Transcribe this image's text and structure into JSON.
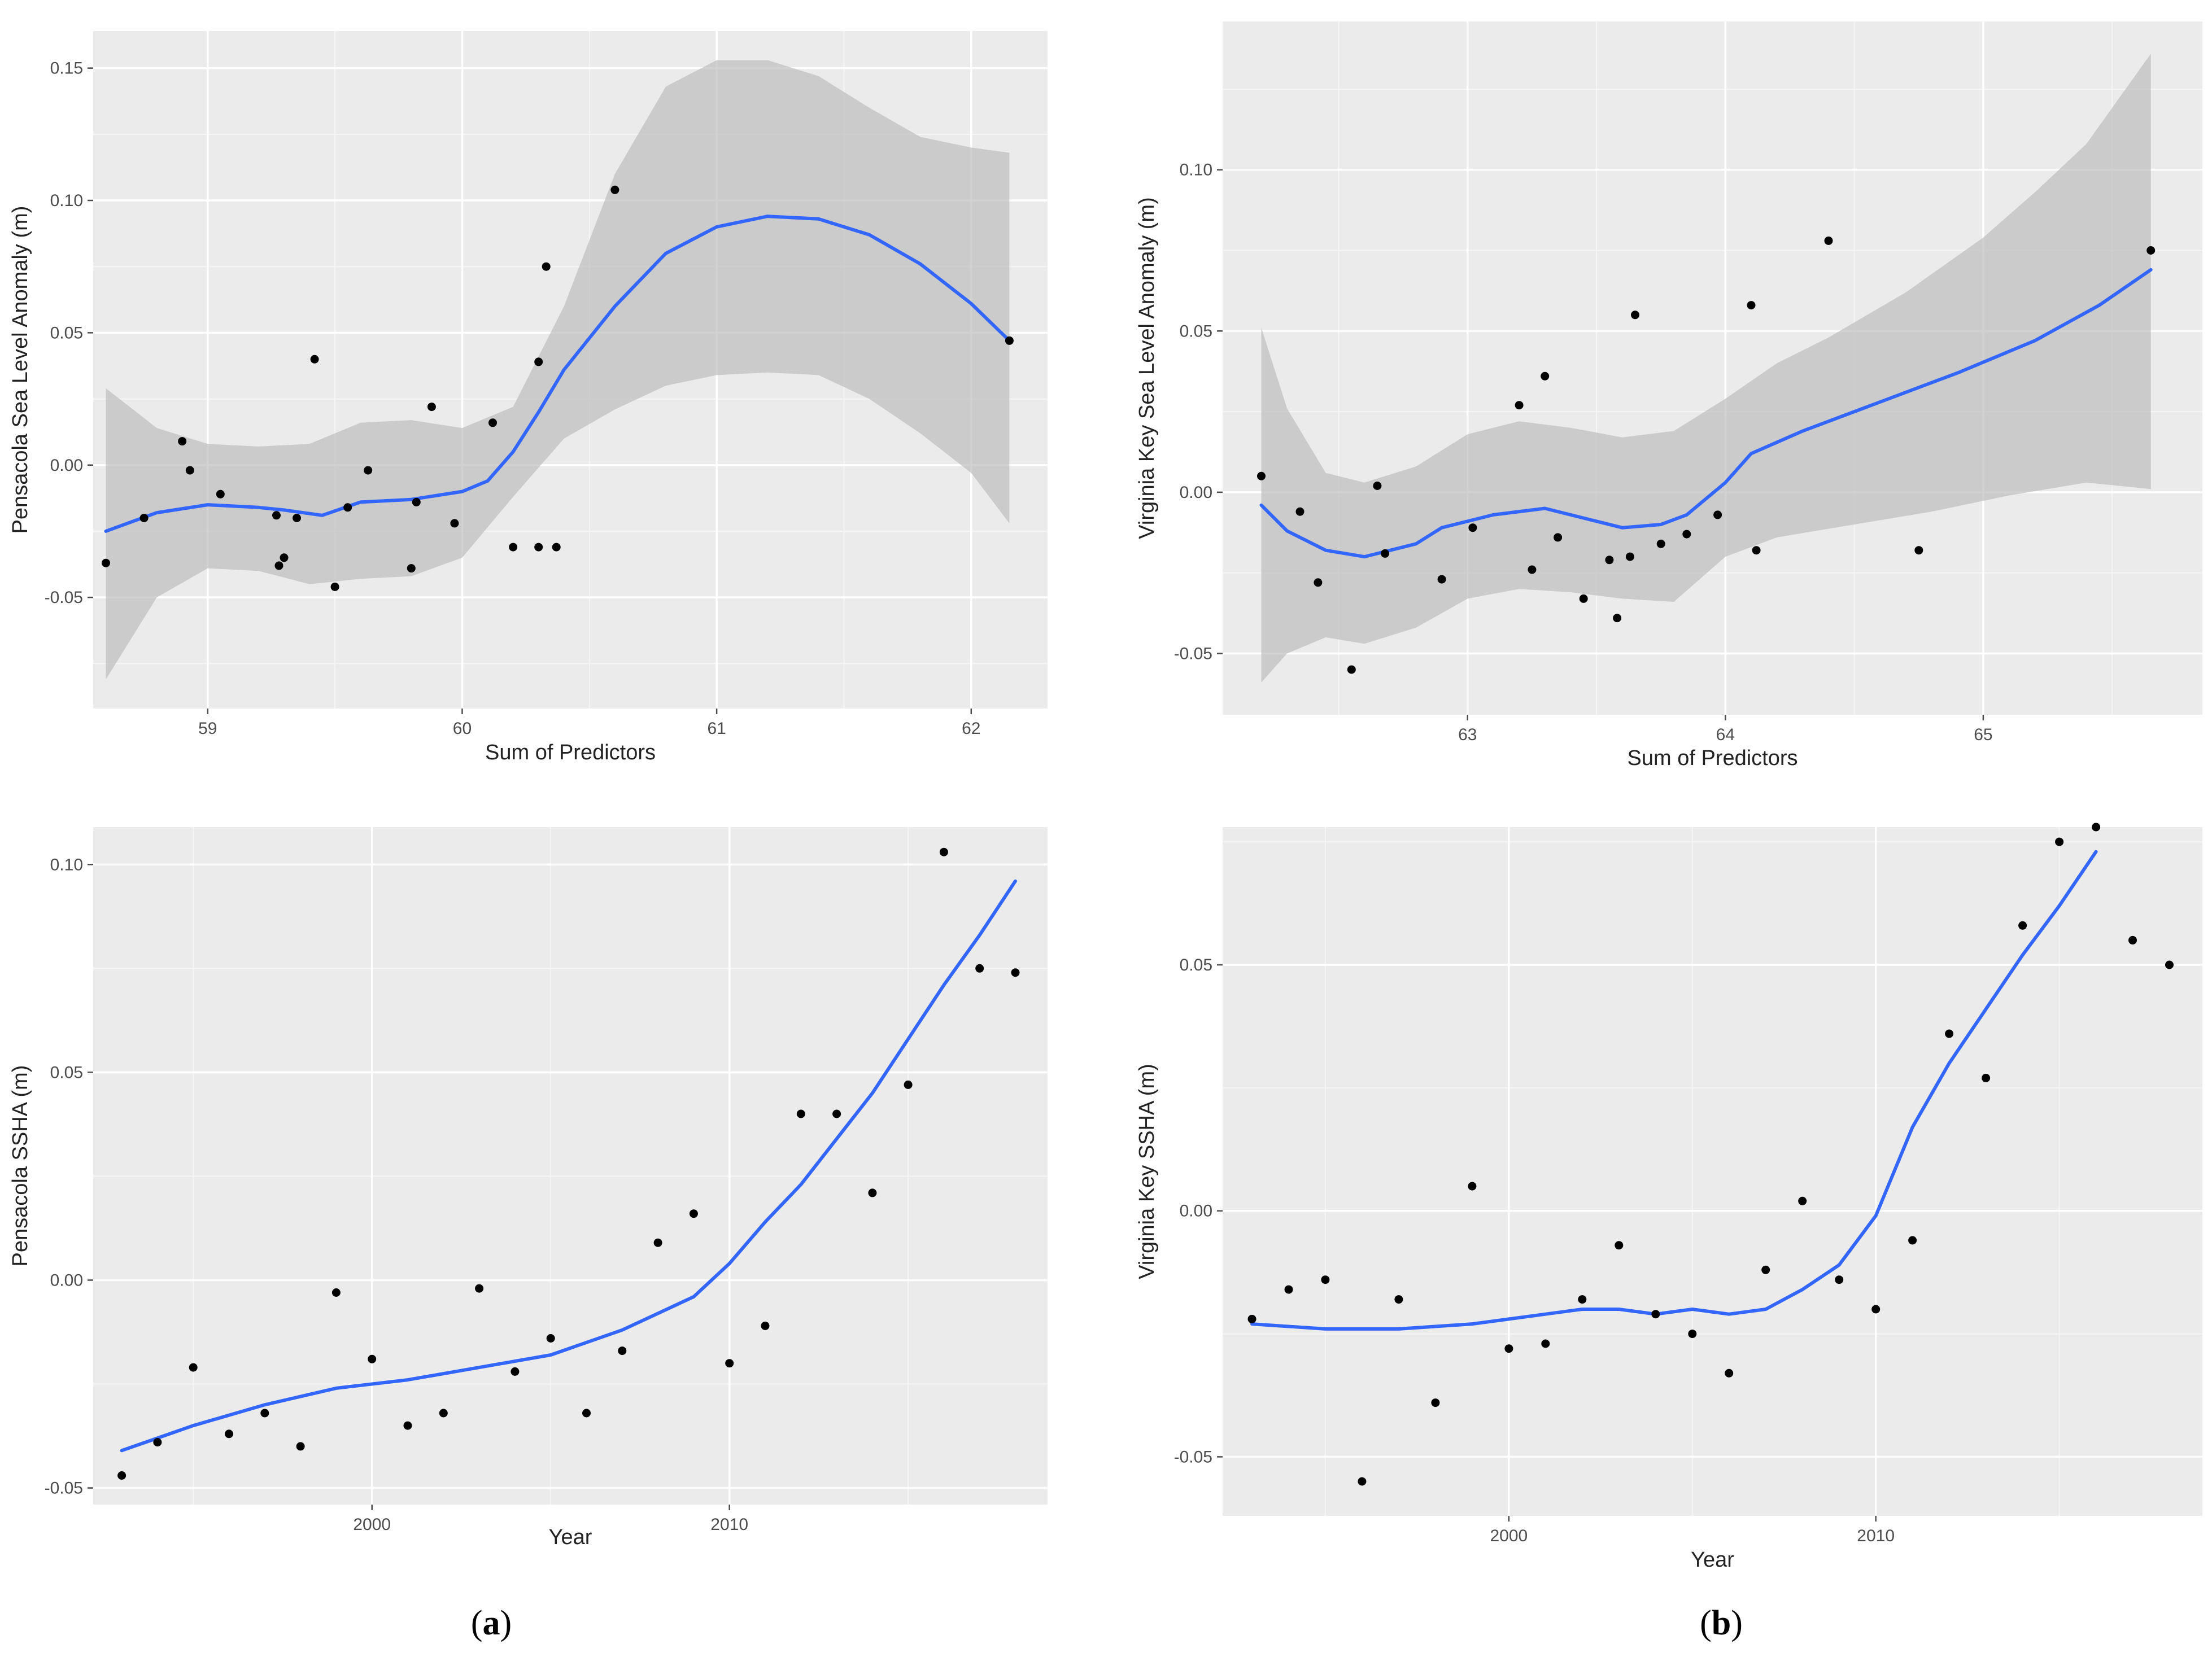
{
  "panel_labels": {
    "a": [
      "(",
      "a",
      ")"
    ],
    "b": [
      "(",
      "b",
      ")"
    ]
  },
  "colors": {
    "panel_bg": "#ebebeb",
    "grid_major": "#ffffff",
    "grid_minor": "#f5f5f5",
    "fit_line": "#3366ff",
    "ribbon": "#bdbdbd",
    "points": "#000000"
  },
  "chart_data": [
    {
      "id": "a-top",
      "type": "scatter",
      "title": "",
      "xlabel": "Sum of Predictors",
      "ylabel": "Pensacola Sea Level Anomaly (m)",
      "xlim": [
        58.55,
        62.3
      ],
      "ylim": [
        -0.092,
        0.164
      ],
      "xticks": [
        59,
        60,
        61,
        62
      ],
      "xtick_labels": [
        "59",
        "60",
        "61",
        "62"
      ],
      "yticks": [
        -0.05,
        0.0,
        0.05,
        0.1,
        0.15
      ],
      "ytick_labels": [
        "-0.05",
        "0.00",
        "0.05",
        "0.10",
        "0.15"
      ],
      "points": [
        [
          58.6,
          -0.037
        ],
        [
          58.75,
          -0.02
        ],
        [
          58.9,
          0.009
        ],
        [
          58.93,
          -0.002
        ],
        [
          59.05,
          -0.011
        ],
        [
          59.27,
          -0.019
        ],
        [
          59.28,
          -0.038
        ],
        [
          59.3,
          -0.035
        ],
        [
          59.35,
          -0.02
        ],
        [
          59.42,
          0.04
        ],
        [
          59.5,
          -0.046
        ],
        [
          59.55,
          -0.016
        ],
        [
          59.63,
          -0.002
        ],
        [
          59.8,
          -0.039
        ],
        [
          59.82,
          -0.014
        ],
        [
          59.88,
          0.022
        ],
        [
          59.97,
          -0.022
        ],
        [
          60.12,
          0.016
        ],
        [
          60.2,
          -0.031
        ],
        [
          60.3,
          0.039
        ],
        [
          60.3,
          -0.031
        ],
        [
          60.33,
          0.075
        ],
        [
          60.37,
          -0.031
        ],
        [
          60.6,
          0.104
        ],
        [
          62.15,
          0.047
        ]
      ],
      "fit": [
        [
          58.6,
          -0.025
        ],
        [
          58.8,
          -0.018
        ],
        [
          59.0,
          -0.015
        ],
        [
          59.2,
          -0.016
        ],
        [
          59.3,
          -0.017
        ],
        [
          59.45,
          -0.019
        ],
        [
          59.6,
          -0.014
        ],
        [
          59.8,
          -0.013
        ],
        [
          60.0,
          -0.01
        ],
        [
          60.1,
          -0.006
        ],
        [
          60.2,
          0.005
        ],
        [
          60.3,
          0.02
        ],
        [
          60.4,
          0.036
        ],
        [
          60.6,
          0.06
        ],
        [
          60.8,
          0.08
        ],
        [
          61.0,
          0.09
        ],
        [
          61.2,
          0.094
        ],
        [
          61.4,
          0.093
        ],
        [
          61.6,
          0.087
        ],
        [
          61.8,
          0.076
        ],
        [
          62.0,
          0.061
        ],
        [
          62.15,
          0.047
        ]
      ],
      "band_upper": [
        [
          58.6,
          0.029
        ],
        [
          58.8,
          0.014
        ],
        [
          59.0,
          0.008
        ],
        [
          59.2,
          0.007
        ],
        [
          59.4,
          0.008
        ],
        [
          59.6,
          0.016
        ],
        [
          59.8,
          0.017
        ],
        [
          60.0,
          0.014
        ],
        [
          60.2,
          0.022
        ],
        [
          60.4,
          0.06
        ],
        [
          60.6,
          0.11
        ],
        [
          60.8,
          0.143
        ],
        [
          61.0,
          0.153
        ],
        [
          61.2,
          0.153
        ],
        [
          61.4,
          0.147
        ],
        [
          61.6,
          0.135
        ],
        [
          61.8,
          0.124
        ],
        [
          62.0,
          0.12
        ],
        [
          62.15,
          0.118
        ]
      ],
      "band_lower": [
        [
          58.6,
          -0.081
        ],
        [
          58.8,
          -0.05
        ],
        [
          59.0,
          -0.039
        ],
        [
          59.2,
          -0.04
        ],
        [
          59.4,
          -0.045
        ],
        [
          59.6,
          -0.043
        ],
        [
          59.8,
          -0.042
        ],
        [
          60.0,
          -0.035
        ],
        [
          60.2,
          -0.012
        ],
        [
          60.4,
          0.01
        ],
        [
          60.6,
          0.021
        ],
        [
          60.8,
          0.03
        ],
        [
          61.0,
          0.034
        ],
        [
          61.2,
          0.035
        ],
        [
          61.4,
          0.034
        ],
        [
          61.6,
          0.025
        ],
        [
          61.8,
          0.012
        ],
        [
          62.0,
          -0.003
        ],
        [
          62.15,
          -0.022
        ]
      ]
    },
    {
      "id": "b-top",
      "type": "scatter",
      "title": "",
      "xlabel": "Sum of Predictors",
      "ylabel": "Virginia Key Sea Level Anomaly (m)",
      "xlim": [
        62.05,
        65.85
      ],
      "ylim": [
        -0.069,
        0.146
      ],
      "xticks": [
        63,
        64,
        65
      ],
      "xtick_labels": [
        "63",
        "64",
        "65"
      ],
      "yticks": [
        -0.05,
        0.0,
        0.05,
        0.1
      ],
      "ytick_labels": [
        "-0.05",
        "0.00",
        "0.05",
        "0.10"
      ],
      "points": [
        [
          62.2,
          0.005
        ],
        [
          62.35,
          -0.006
        ],
        [
          62.42,
          -0.028
        ],
        [
          62.55,
          -0.055
        ],
        [
          62.65,
          0.002
        ],
        [
          62.68,
          -0.019
        ],
        [
          62.9,
          -0.027
        ],
        [
          63.02,
          -0.011
        ],
        [
          63.2,
          0.027
        ],
        [
          63.25,
          -0.024
        ],
        [
          63.3,
          0.036
        ],
        [
          63.35,
          -0.014
        ],
        [
          63.45,
          -0.033
        ],
        [
          63.55,
          -0.021
        ],
        [
          63.58,
          -0.039
        ],
        [
          63.63,
          -0.02
        ],
        [
          63.65,
          0.055
        ],
        [
          63.75,
          -0.016
        ],
        [
          63.85,
          -0.013
        ],
        [
          63.97,
          -0.007
        ],
        [
          64.1,
          0.058
        ],
        [
          64.12,
          -0.018
        ],
        [
          64.4,
          0.078
        ],
        [
          64.75,
          -0.018
        ],
        [
          65.65,
          0.075
        ]
      ],
      "fit": [
        [
          62.2,
          -0.004
        ],
        [
          62.3,
          -0.012
        ],
        [
          62.45,
          -0.018
        ],
        [
          62.6,
          -0.02
        ],
        [
          62.8,
          -0.016
        ],
        [
          62.9,
          -0.011
        ],
        [
          63.1,
          -0.007
        ],
        [
          63.3,
          -0.005
        ],
        [
          63.45,
          -0.008
        ],
        [
          63.6,
          -0.011
        ],
        [
          63.75,
          -0.01
        ],
        [
          63.85,
          -0.007
        ],
        [
          64.0,
          0.003
        ],
        [
          64.1,
          0.012
        ],
        [
          64.3,
          0.019
        ],
        [
          64.6,
          0.028
        ],
        [
          64.9,
          0.037
        ],
        [
          65.2,
          0.047
        ],
        [
          65.45,
          0.058
        ],
        [
          65.65,
          0.069
        ]
      ],
      "band_upper": [
        [
          62.2,
          0.051
        ],
        [
          62.3,
          0.026
        ],
        [
          62.45,
          0.006
        ],
        [
          62.6,
          0.003
        ],
        [
          62.8,
          0.008
        ],
        [
          63.0,
          0.018
        ],
        [
          63.2,
          0.022
        ],
        [
          63.4,
          0.02
        ],
        [
          63.6,
          0.017
        ],
        [
          63.8,
          0.019
        ],
        [
          64.0,
          0.029
        ],
        [
          64.2,
          0.04
        ],
        [
          64.4,
          0.048
        ],
        [
          64.7,
          0.062
        ],
        [
          65.0,
          0.079
        ],
        [
          65.2,
          0.093
        ],
        [
          65.4,
          0.108
        ],
        [
          65.65,
          0.136
        ]
      ],
      "band_lower": [
        [
          62.2,
          -0.059
        ],
        [
          62.3,
          -0.05
        ],
        [
          62.45,
          -0.045
        ],
        [
          62.6,
          -0.047
        ],
        [
          62.8,
          -0.042
        ],
        [
          63.0,
          -0.033
        ],
        [
          63.2,
          -0.03
        ],
        [
          63.4,
          -0.031
        ],
        [
          63.6,
          -0.033
        ],
        [
          63.8,
          -0.034
        ],
        [
          64.0,
          -0.02
        ],
        [
          64.2,
          -0.014
        ],
        [
          64.5,
          -0.01
        ],
        [
          64.8,
          -0.006
        ],
        [
          65.1,
          -0.001
        ],
        [
          65.4,
          0.003
        ],
        [
          65.65,
          0.001
        ]
      ]
    },
    {
      "id": "a-bottom",
      "type": "scatter",
      "title": "",
      "xlabel": "Year",
      "ylabel": "Pensacola SSHA (m)",
      "xlim": [
        1992.2,
        2018.9
      ],
      "ylim": [
        -0.054,
        0.109
      ],
      "xticks": [
        2000,
        2010
      ],
      "xtick_labels": [
        "2000",
        "2010"
      ],
      "yticks": [
        -0.05,
        0.0,
        0.05,
        0.1
      ],
      "ytick_labels": [
        "-0.05",
        "0.00",
        "0.05",
        "0.10"
      ],
      "points": [
        [
          1993,
          -0.047
        ],
        [
          1994,
          -0.039
        ],
        [
          1995,
          -0.021
        ],
        [
          1996,
          -0.037
        ],
        [
          1997,
          -0.032
        ],
        [
          1998,
          -0.04
        ],
        [
          1999,
          -0.003
        ],
        [
          2000,
          -0.019
        ],
        [
          2001,
          -0.035
        ],
        [
          2002,
          -0.032
        ],
        [
          2003,
          -0.002
        ],
        [
          2004,
          -0.022
        ],
        [
          2005,
          -0.014
        ],
        [
          2006,
          -0.032
        ],
        [
          2007,
          -0.017
        ],
        [
          2008,
          0.009
        ],
        [
          2009,
          0.016
        ],
        [
          2010,
          -0.02
        ],
        [
          2011,
          -0.011
        ],
        [
          2012,
          0.04
        ],
        [
          2013,
          0.04
        ],
        [
          2014,
          0.021
        ],
        [
          2015,
          0.047
        ],
        [
          2016,
          0.103
        ],
        [
          2017,
          0.075
        ],
        [
          2018,
          0.074
        ]
      ],
      "fit": [
        [
          1993,
          -0.041
        ],
        [
          1995,
          -0.035
        ],
        [
          1997,
          -0.03
        ],
        [
          1999,
          -0.026
        ],
        [
          2001,
          -0.024
        ],
        [
          2003,
          -0.021
        ],
        [
          2005,
          -0.018
        ],
        [
          2007,
          -0.012
        ],
        [
          2009,
          -0.004
        ],
        [
          2010,
          0.004
        ],
        [
          2011,
          0.014
        ],
        [
          2012,
          0.023
        ],
        [
          2013,
          0.034
        ],
        [
          2014,
          0.045
        ],
        [
          2015,
          0.058
        ],
        [
          2016,
          0.071
        ],
        [
          2017,
          0.083
        ],
        [
          2018,
          0.096
        ]
      ]
    },
    {
      "id": "b-bottom",
      "type": "scatter",
      "title": "",
      "xlabel": "Year",
      "ylabel": "Virginia Key SSHA (m)",
      "xlim": [
        1992.2,
        2018.9
      ],
      "ylim": [
        -0.062,
        0.078
      ],
      "xticks": [
        2000,
        2010
      ],
      "xtick_labels": [
        "2000",
        "2010"
      ],
      "yticks": [
        -0.05,
        0.0,
        0.05
      ],
      "ytick_labels": [
        "-0.05",
        "0.00",
        "0.05"
      ],
      "points": [
        [
          1993,
          -0.022
        ],
        [
          1994,
          -0.016
        ],
        [
          1995,
          -0.014
        ],
        [
          1996,
          -0.055
        ],
        [
          1997,
          -0.018
        ],
        [
          1998,
          -0.039
        ],
        [
          1999,
          0.005
        ],
        [
          2000,
          -0.028
        ],
        [
          2001,
          -0.027
        ],
        [
          2002,
          -0.018
        ],
        [
          2003,
          -0.007
        ],
        [
          2004,
          -0.021
        ],
        [
          2005,
          -0.025
        ],
        [
          2006,
          -0.033
        ],
        [
          2007,
          -0.012
        ],
        [
          2008,
          0.002
        ],
        [
          2009,
          -0.014
        ],
        [
          2010,
          -0.02
        ],
        [
          2011,
          -0.006
        ],
        [
          2012,
          0.036
        ],
        [
          2013,
          0.027
        ],
        [
          2014,
          0.058
        ],
        [
          2015,
          0.075
        ],
        [
          2016,
          0.078
        ],
        [
          2017,
          0.055
        ],
        [
          2018,
          0.05
        ]
      ],
      "fit": [
        [
          1993,
          -0.023
        ],
        [
          1995,
          -0.024
        ],
        [
          1997,
          -0.024
        ],
        [
          1999,
          -0.023
        ],
        [
          2001,
          -0.021
        ],
        [
          2002,
          -0.02
        ],
        [
          2003,
          -0.02
        ],
        [
          2004,
          -0.021
        ],
        [
          2005,
          -0.02
        ],
        [
          2006,
          -0.021
        ],
        [
          2007,
          -0.02
        ],
        [
          2008,
          -0.016
        ],
        [
          2009,
          -0.011
        ],
        [
          2010,
          -0.001
        ],
        [
          2011,
          0.017
        ],
        [
          2012,
          0.03
        ],
        [
          2013,
          0.041
        ],
        [
          2014,
          0.052
        ],
        [
          2015,
          0.062
        ],
        [
          2016,
          0.073
        ]
      ]
    }
  ]
}
